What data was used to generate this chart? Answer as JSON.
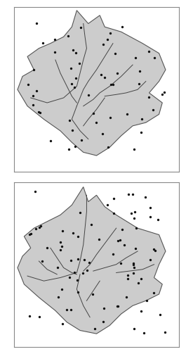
{
  "background_color": "#ffffff",
  "panel_bg": "#ffffff",
  "catchment_color": "#cccccc",
  "catchment_edge_color": "#555555",
  "river_color": "#444444",
  "dot_color": "#111111",
  "border_color": "#888888",
  "fig_width": 2.75,
  "fig_height": 5.03,
  "dpi": 100
}
